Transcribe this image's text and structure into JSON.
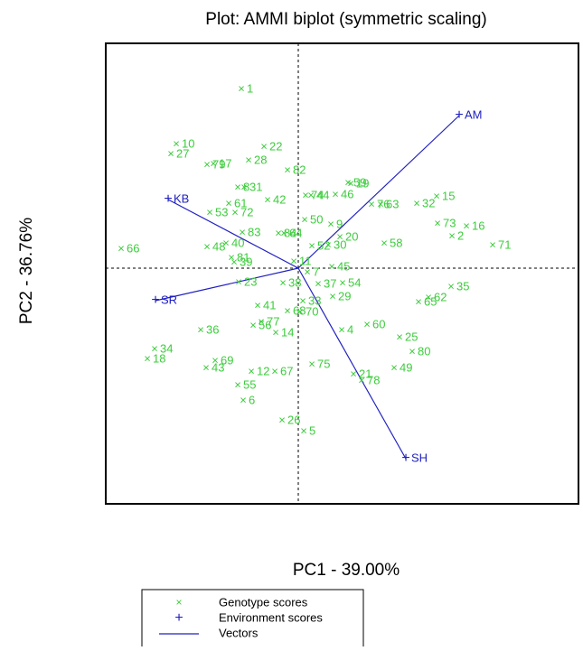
{
  "chart_data": {
    "type": "biplot",
    "title": "Plot: AMMI biplot (symmetric scaling)",
    "x_label": "PC1 - 39.00%",
    "y_label": "PC2 - 36.76%",
    "xlim": [
      -2.13,
      3.1
    ],
    "ylim": [
      -2.61,
      2.49
    ],
    "series": [
      {
        "name": "Genotype scores",
        "color": "#3ccc3c",
        "marker": "×",
        "labels": [
          "1",
          "10",
          "27",
          "79",
          "17",
          "22",
          "28",
          "82",
          "8",
          "31",
          "61",
          "42",
          "53",
          "72",
          "74",
          "44",
          "59",
          "19",
          "46",
          "76",
          "63",
          "15",
          "32",
          "73",
          "16",
          "2",
          "71",
          "58",
          "9",
          "50",
          "52",
          "30",
          "20",
          "84",
          "64",
          "83",
          "40",
          "48",
          "66",
          "81",
          "39",
          "11",
          "23",
          "38",
          "37",
          "7",
          "45",
          "54",
          "29",
          "35",
          "62",
          "65",
          "41",
          "33",
          "70",
          "68",
          "56",
          "77",
          "14",
          "36",
          "4",
          "60",
          "25",
          "80",
          "34",
          "18",
          "69",
          "43",
          "12",
          "67",
          "75",
          "21",
          "78",
          "49",
          "55",
          "6",
          "26",
          "5"
        ],
        "x": [
          -0.63,
          -1.35,
          -1.41,
          -1.01,
          -0.94,
          -0.38,
          -0.55,
          -0.12,
          -0.67,
          -0.6,
          -0.77,
          -0.34,
          -0.98,
          -0.7,
          0.08,
          0.14,
          0.55,
          0.58,
          0.41,
          0.81,
          0.91,
          1.53,
          1.31,
          1.54,
          1.86,
          1.7,
          2.15,
          0.95,
          0.36,
          0.07,
          0.15,
          0.33,
          0.46,
          -0.22,
          -0.16,
          -0.62,
          -0.8,
          -1.01,
          -1.96,
          -0.74,
          -0.71,
          -0.05,
          -0.66,
          -0.17,
          0.22,
          0.1,
          0.37,
          0.49,
          0.38,
          1.69,
          1.44,
          1.33,
          -0.45,
          0.05,
          0.02,
          -0.12,
          -0.5,
          -0.41,
          -0.25,
          -1.08,
          0.48,
          0.76,
          1.12,
          1.26,
          -1.59,
          -1.67,
          -0.92,
          -1.02,
          -0.52,
          -0.26,
          0.15,
          0.61,
          0.7,
          1.06,
          -0.67,
          -0.61,
          -0.18,
          0.06
        ],
        "y": [
          1.98,
          1.37,
          1.26,
          1.14,
          1.15,
          1.34,
          1.19,
          1.08,
          0.89,
          0.89,
          0.71,
          0.75,
          0.61,
          0.61,
          0.8,
          0.8,
          0.94,
          0.93,
          0.81,
          0.7,
          0.7,
          0.79,
          0.71,
          0.49,
          0.46,
          0.35,
          0.25,
          0.27,
          0.48,
          0.53,
          0.24,
          0.25,
          0.34,
          0.38,
          0.38,
          0.39,
          0.27,
          0.23,
          0.21,
          0.11,
          0.06,
          0.07,
          -0.16,
          -0.17,
          -0.18,
          -0.05,
          0.01,
          -0.17,
          -0.32,
          -0.21,
          -0.33,
          -0.38,
          -0.42,
          -0.37,
          -0.49,
          -0.48,
          -0.64,
          -0.6,
          -0.72,
          -0.69,
          -0.69,
          -0.63,
          -0.77,
          -0.93,
          -0.9,
          -1.01,
          -1.03,
          -1.11,
          -1.15,
          -1.15,
          -1.07,
          -1.18,
          -1.25,
          -1.11,
          -1.3,
          -1.47,
          -1.69,
          -1.81
        ]
      },
      {
        "name": "Environment scores",
        "color": "#2020c0",
        "marker": "+",
        "labels": [
          "AM",
          "KB",
          "SR",
          "SH"
        ],
        "x": [
          1.78,
          -1.44,
          -1.58,
          1.19
        ],
        "y": [
          1.69,
          0.76,
          -0.36,
          -2.11
        ]
      },
      {
        "name": "Vectors",
        "color": "#2020c0"
      }
    ]
  }
}
